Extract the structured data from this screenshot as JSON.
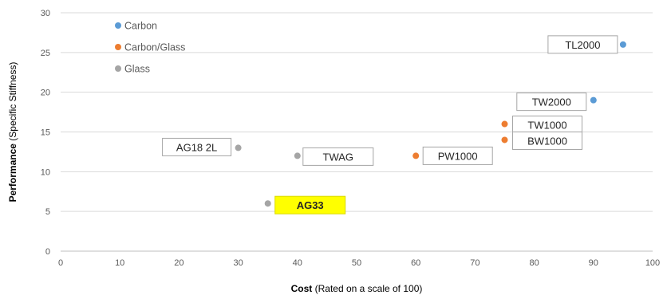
{
  "chart_data": {
    "type": "scatter",
    "title": "",
    "xlabel": {
      "bold": "Cost",
      "rest": " (Rated on a scale of 100)"
    },
    "ylabel": {
      "bold": "Performance",
      "rest": " (Specific Stiffness)"
    },
    "xlim": [
      0,
      100
    ],
    "ylim": [
      0,
      30
    ],
    "xticks": [
      0,
      10,
      20,
      30,
      40,
      50,
      60,
      70,
      80,
      90,
      100
    ],
    "yticks": [
      0,
      5,
      10,
      15,
      20,
      25,
      30
    ],
    "grid": "horizontal",
    "legend": {
      "placement": "top-left",
      "entries": [
        "Carbon",
        "Carbon/Glass",
        "Glass"
      ]
    },
    "series": [
      {
        "name": "Carbon",
        "color": "#5B9BD5",
        "points": [
          {
            "x": 95,
            "y": 26,
            "label": "TL2000"
          },
          {
            "x": 90,
            "y": 19,
            "label": "TW2000"
          }
        ]
      },
      {
        "name": "Carbon/Glass",
        "color": "#ED7D31",
        "points": [
          {
            "x": 75,
            "y": 16,
            "label": "TW1000"
          },
          {
            "x": 75,
            "y": 14,
            "label": "BW1000"
          },
          {
            "x": 60,
            "y": 12,
            "label": "PW1000"
          }
        ]
      },
      {
        "name": "Glass",
        "color": "#A5A5A5",
        "points": [
          {
            "x": 30,
            "y": 13,
            "label": "AG18 2L"
          },
          {
            "x": 40,
            "y": 12,
            "label": "TWAG"
          },
          {
            "x": 35,
            "y": 6,
            "label": "AG33",
            "highlight": true,
            "highlight_color": "#FFFF00"
          }
        ]
      }
    ]
  }
}
